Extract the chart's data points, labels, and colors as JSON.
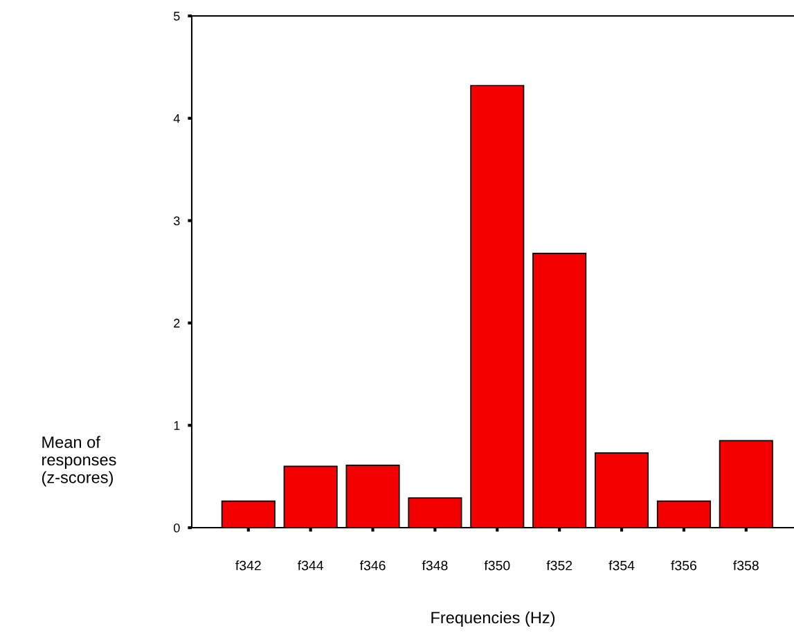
{
  "chart_data": {
    "type": "bar",
    "xlabel": "Frequencies (Hz)",
    "ylabel": "Mean of\nresponses\n(z-scores)",
    "categories": [
      "f342",
      "f344",
      "f346",
      "f348",
      "f350",
      "f352",
      "f354",
      "f356",
      "f358"
    ],
    "values": [
      0.26,
      0.6,
      0.61,
      0.29,
      4.32,
      2.68,
      0.73,
      0.26,
      0.85
    ],
    "color": "#f50000",
    "ylim": [
      0,
      5
    ],
    "yticks": [
      0,
      1,
      2,
      3,
      4,
      5
    ],
    "grid": false,
    "legend": false
  }
}
